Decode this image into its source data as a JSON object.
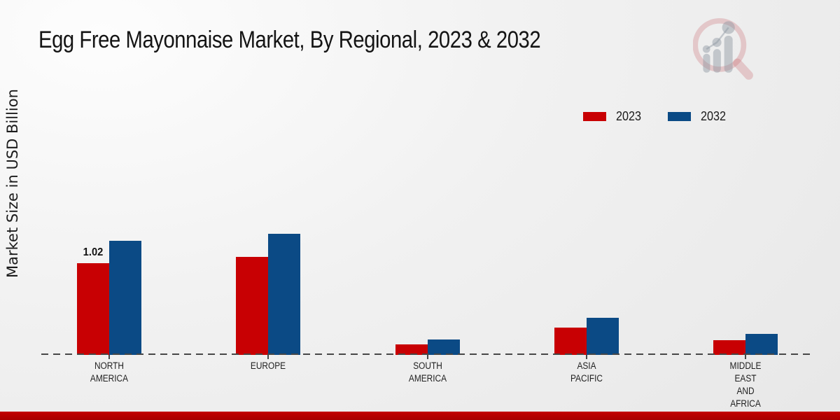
{
  "page": {
    "title": "Egg Free Mayonnaise Market, By Regional, 2023 & 2032"
  },
  "chart_data": {
    "type": "bar",
    "title": "Egg Free Mayonnaise Market, By Regional, 2023 & 2032",
    "xlabel": "",
    "ylabel": "Market Size in USD Billion",
    "categories": [
      "NORTH AMERICA",
      "EUROPE",
      "SOUTH AMERICA",
      "ASIA PACIFIC",
      "MIDDLE EAST AND AFRICA"
    ],
    "category_label_lines": [
      [
        "NORTH",
        "AMERICA"
      ],
      [
        "EUROPE"
      ],
      [
        "SOUTH",
        "AMERICA"
      ],
      [
        "ASIA",
        "PACIFIC"
      ],
      [
        "MIDDLE",
        "EAST",
        "AND",
        "AFRICA"
      ]
    ],
    "series": [
      {
        "name": "2023",
        "color": "#c80003",
        "values": [
          1.02,
          1.09,
          0.12,
          0.3,
          0.16
        ]
      },
      {
        "name": "2032",
        "color": "#0b4a85",
        "values": [
          1.27,
          1.35,
          0.17,
          0.41,
          0.23
        ]
      }
    ],
    "data_labels": [
      {
        "series_index": 0,
        "category_index": 0,
        "text": "1.02"
      }
    ],
    "legend": {
      "position": "top-right",
      "entries": [
        "2023",
        "2032"
      ]
    },
    "ylim": [
      0,
      1.4
    ],
    "grid": false,
    "baseline_style": "dashed"
  },
  "colors": {
    "series_2023": "#c80003",
    "series_2032": "#0b4a85",
    "baseline": "#474747",
    "footer_bar": "#b00000"
  },
  "logo": {
    "name": "market-research-chart-watermark"
  }
}
